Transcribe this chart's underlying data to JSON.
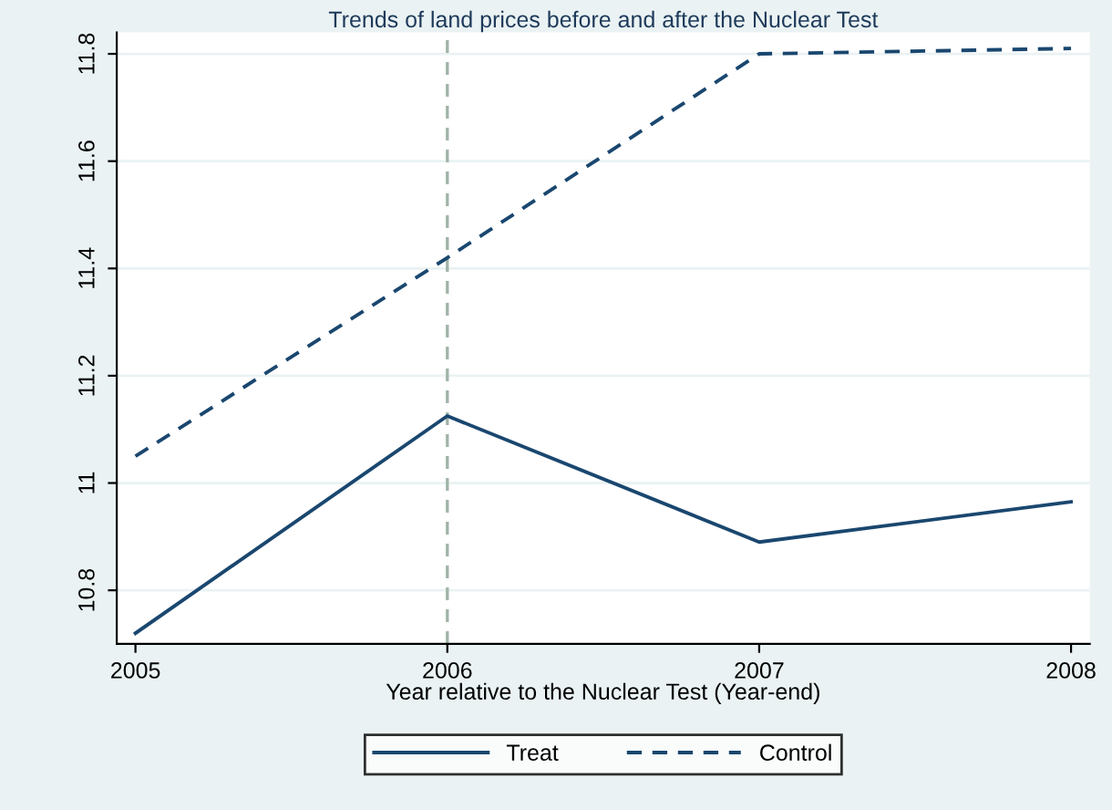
{
  "chart_data": {
    "type": "line",
    "title": "Trends of land prices before and after the Nuclear Test",
    "xlabel": "Year relative to the Nuclear Test (Year-end)",
    "x": [
      2005,
      2006,
      2007,
      2008
    ],
    "series": [
      {
        "name": "Treat",
        "color": "#1a476f",
        "line_style": "solid",
        "values": [
          10.72,
          11.125,
          10.89,
          10.965
        ]
      },
      {
        "name": "Control",
        "color": "#1a476f",
        "line_style": "dashed",
        "values": [
          11.05,
          11.42,
          11.8,
          11.81
        ]
      }
    ],
    "xlim": [
      2004.94,
      2008.06
    ],
    "xticks": [
      2005,
      2006,
      2007,
      2008
    ],
    "ylim": [
      10.7,
      11.84
    ],
    "yticks": [
      10.8,
      11,
      11.2,
      11.4,
      11.6,
      11.8
    ],
    "ref_lines": [
      {
        "axis": "x",
        "value": 2006,
        "color": "#a0b4a8",
        "line_style": "dashed"
      }
    ],
    "grid": "y",
    "legend": "bottom",
    "marker": "none"
  }
}
